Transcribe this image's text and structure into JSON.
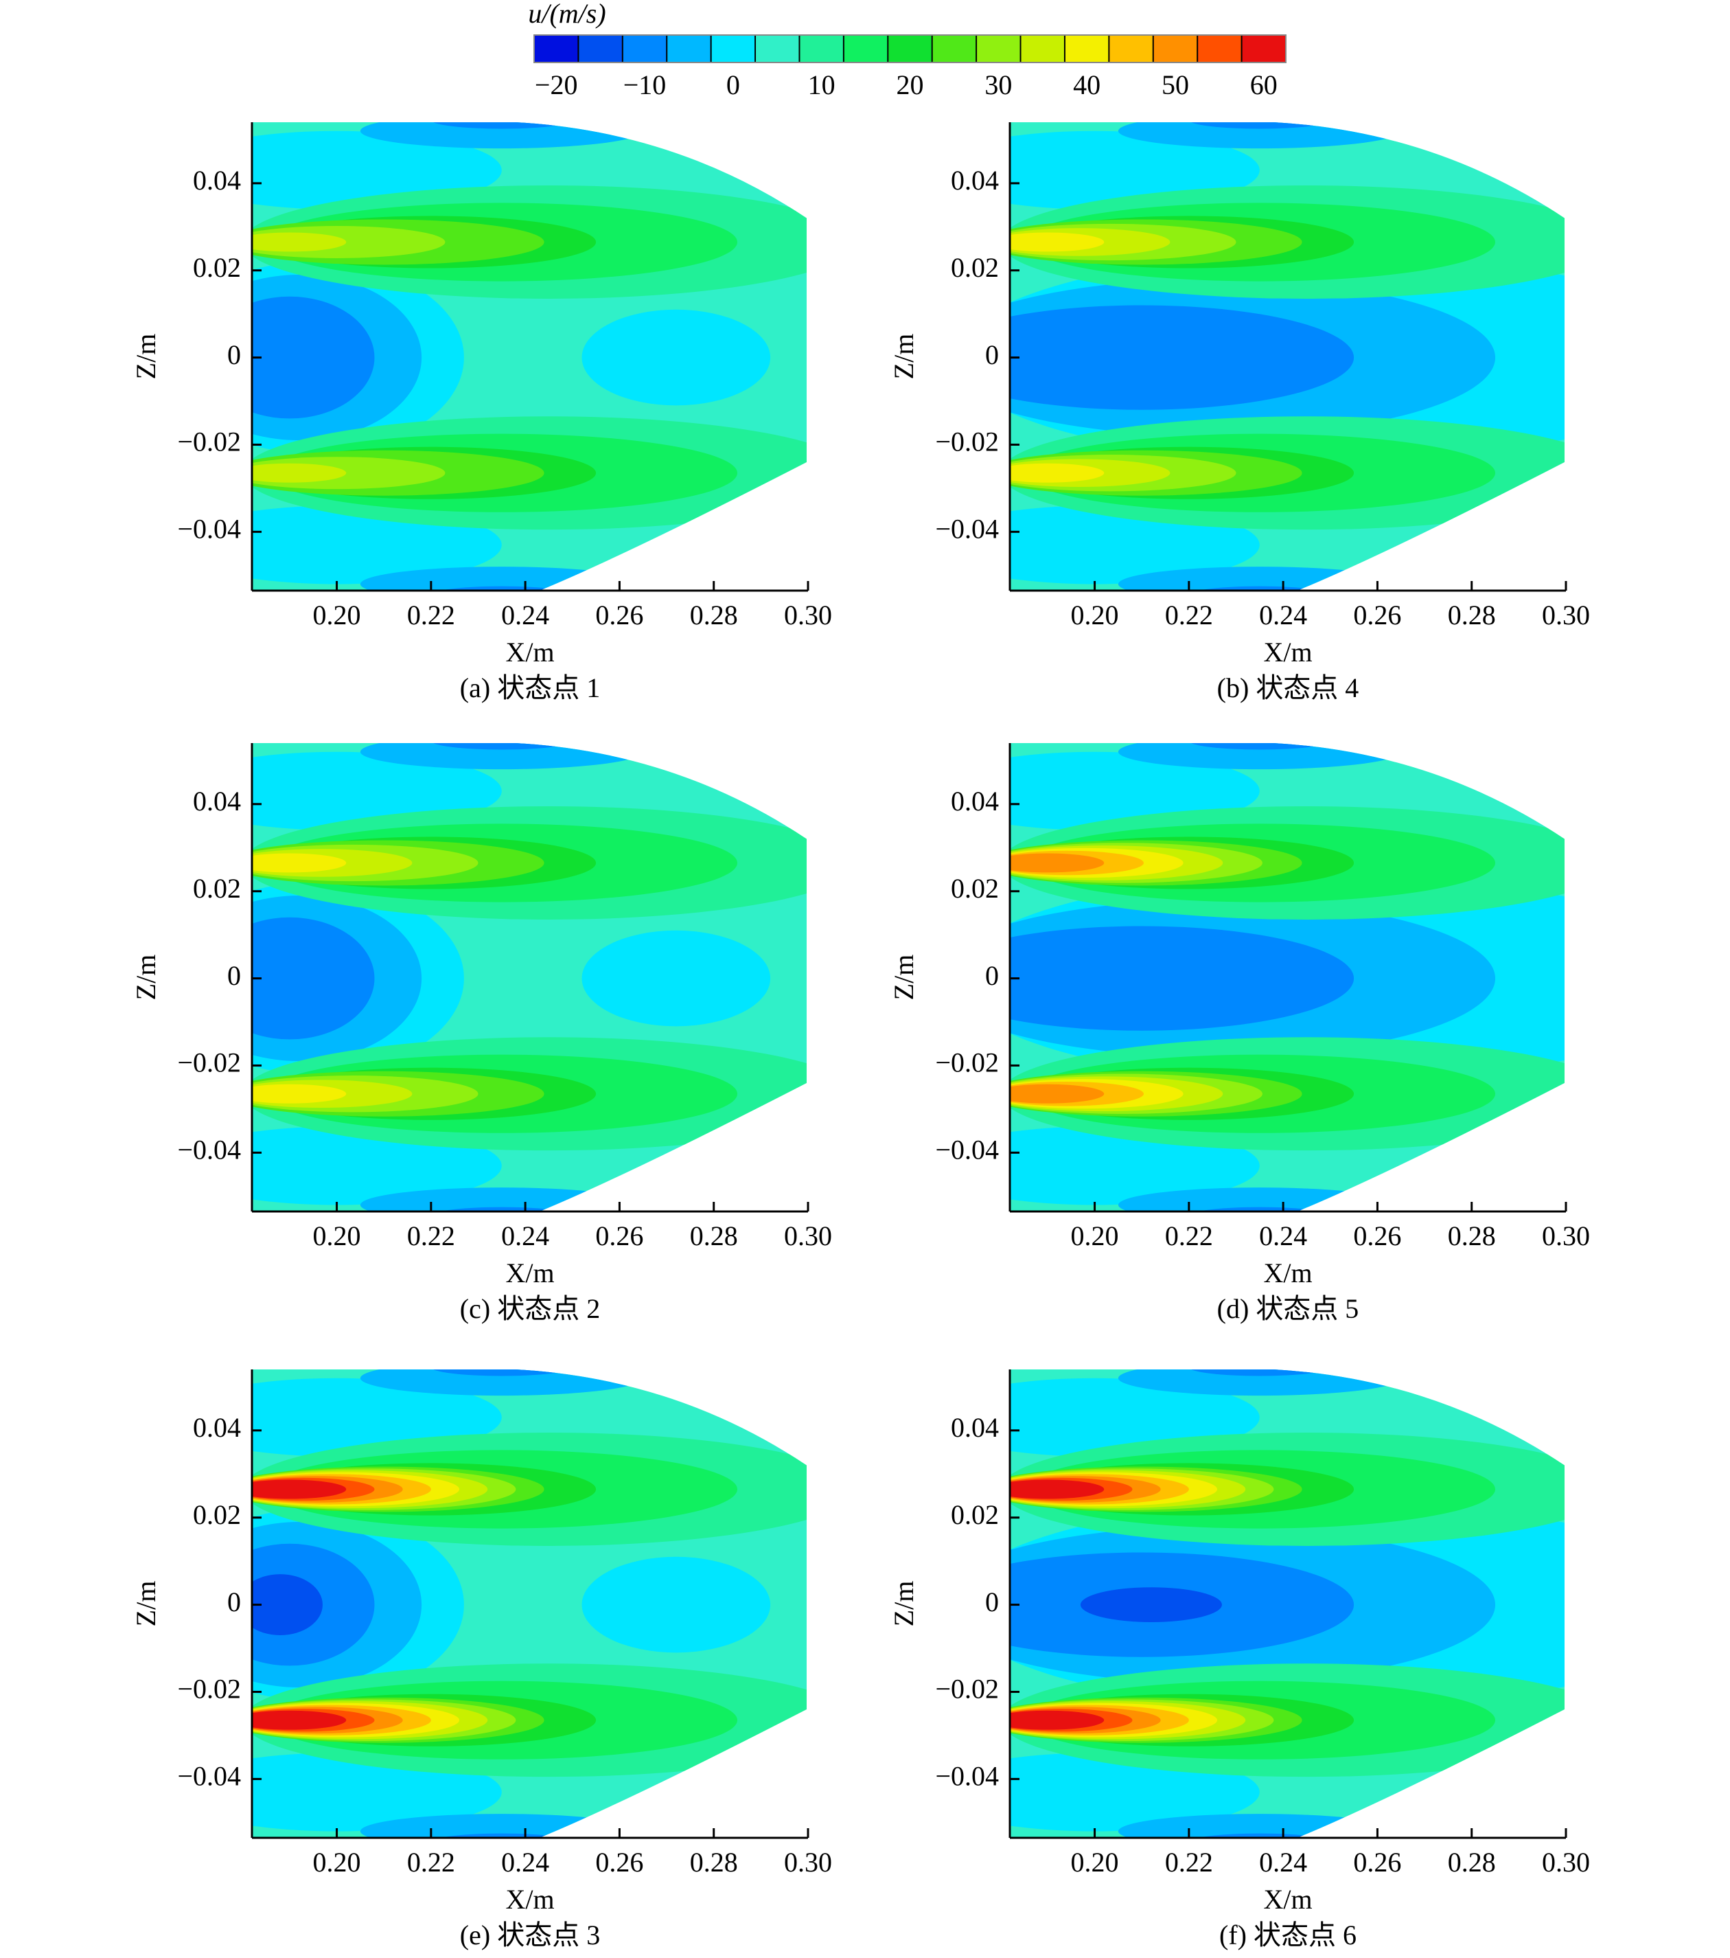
{
  "colorbar": {
    "title": "u/(m/s)",
    "lim": [
      -22.5,
      62.5
    ],
    "ticks": [
      {
        "value": -20,
        "label": "−20"
      },
      {
        "value": -10,
        "label": "−10"
      },
      0,
      10,
      20,
      30,
      40,
      50,
      60
    ],
    "colors": [
      "#0010e0",
      "#0050f0",
      "#0088ff",
      "#00b8ff",
      "#00e6ff",
      "#30f0c8",
      "#20f098",
      "#10f060",
      "#10e030",
      "#50e818",
      "#90f010",
      "#c8f000",
      "#f4f000",
      "#ffc000",
      "#ff9000",
      "#ff5000",
      "#e81010"
    ]
  },
  "chart_data": [
    {
      "type": "contour",
      "caption": "(a) 状态点 1",
      "xlabel": "X/m",
      "ylabel": "Z/m",
      "xlim": [
        0.182,
        0.3
      ],
      "ylim": [
        -0.0535,
        0.054
      ],
      "xticks": [
        {
          "value": 0.2,
          "label": "0.20"
        },
        {
          "value": 0.22,
          "label": "0.22"
        },
        {
          "value": 0.24,
          "label": "0.24"
        },
        {
          "value": 0.26,
          "label": "0.26"
        },
        {
          "value": 0.28,
          "label": "0.28"
        },
        {
          "value": 0.3,
          "label": "0.30"
        }
      ],
      "yticks": [
        {
          "value": -0.04,
          "label": "−0.04"
        },
        {
          "value": -0.02,
          "label": "−0.02"
        },
        0,
        {
          "value": 0.02,
          "label": "0.02"
        },
        {
          "value": 0.04,
          "label": "0.04"
        }
      ]
    },
    {
      "type": "contour",
      "caption": "(b) 状态点 4",
      "xlabel": "X/m",
      "ylabel": "Z/m",
      "xlim": [
        0.182,
        0.3
      ],
      "ylim": [
        -0.0535,
        0.054
      ],
      "xticks": [
        {
          "value": 0.2,
          "label": "0.20"
        },
        {
          "value": 0.22,
          "label": "0.22"
        },
        {
          "value": 0.24,
          "label": "0.24"
        },
        {
          "value": 0.26,
          "label": "0.26"
        },
        {
          "value": 0.28,
          "label": "0.28"
        },
        {
          "value": 0.3,
          "label": "0.30"
        }
      ],
      "yticks": [
        {
          "value": -0.04,
          "label": "−0.04"
        },
        {
          "value": -0.02,
          "label": "−0.02"
        },
        0,
        {
          "value": 0.02,
          "label": "0.02"
        },
        {
          "value": 0.04,
          "label": "0.04"
        }
      ]
    },
    {
      "type": "contour",
      "caption": "(c) 状态点 2",
      "xlabel": "X/m",
      "ylabel": "Z/m",
      "xlim": [
        0.182,
        0.3
      ],
      "ylim": [
        -0.0535,
        0.054
      ],
      "xticks": [
        {
          "value": 0.2,
          "label": "0.20"
        },
        {
          "value": 0.22,
          "label": "0.22"
        },
        {
          "value": 0.24,
          "label": "0.24"
        },
        {
          "value": 0.26,
          "label": "0.26"
        },
        {
          "value": 0.28,
          "label": "0.28"
        },
        {
          "value": 0.3,
          "label": "0.30"
        }
      ],
      "yticks": [
        {
          "value": -0.04,
          "label": "−0.04"
        },
        {
          "value": -0.02,
          "label": "−0.02"
        },
        0,
        {
          "value": 0.02,
          "label": "0.02"
        },
        {
          "value": 0.04,
          "label": "0.04"
        }
      ]
    },
    {
      "type": "contour",
      "caption": "(d) 状态点 5",
      "xlabel": "X/m",
      "ylabel": "Z/m",
      "xlim": [
        0.182,
        0.3
      ],
      "ylim": [
        -0.0535,
        0.054
      ],
      "xticks": [
        {
          "value": 0.2,
          "label": "0.20"
        },
        {
          "value": 0.22,
          "label": "0.22"
        },
        {
          "value": 0.24,
          "label": "0.24"
        },
        {
          "value": 0.26,
          "label": "0.26"
        },
        {
          "value": 0.28,
          "label": "0.28"
        },
        {
          "value": 0.3,
          "label": "0.30"
        }
      ],
      "yticks": [
        {
          "value": -0.04,
          "label": "−0.04"
        },
        {
          "value": -0.02,
          "label": "−0.02"
        },
        0,
        {
          "value": 0.02,
          "label": "0.02"
        },
        {
          "value": 0.04,
          "label": "0.04"
        }
      ]
    },
    {
      "type": "contour",
      "caption": "(e) 状态点 3",
      "xlabel": "X/m",
      "ylabel": "Z/m",
      "xlim": [
        0.182,
        0.3
      ],
      "ylim": [
        -0.0535,
        0.054
      ],
      "xticks": [
        {
          "value": 0.2,
          "label": "0.20"
        },
        {
          "value": 0.22,
          "label": "0.22"
        },
        {
          "value": 0.24,
          "label": "0.24"
        },
        {
          "value": 0.26,
          "label": "0.26"
        },
        {
          "value": 0.28,
          "label": "0.28"
        },
        {
          "value": 0.3,
          "label": "0.30"
        }
      ],
      "yticks": [
        {
          "value": -0.04,
          "label": "−0.04"
        },
        {
          "value": -0.02,
          "label": "−0.02"
        },
        0,
        {
          "value": 0.02,
          "label": "0.02"
        },
        {
          "value": 0.04,
          "label": "0.04"
        }
      ]
    },
    {
      "type": "contour",
      "caption": "(f) 状态点 6",
      "xlabel": "X/m",
      "ylabel": "Z/m",
      "xlim": [
        0.182,
        0.3
      ],
      "ylim": [
        -0.0535,
        0.054
      ],
      "xticks": [
        {
          "value": 0.2,
          "label": "0.20"
        },
        {
          "value": 0.22,
          "label": "0.22"
        },
        {
          "value": 0.24,
          "label": "0.24"
        },
        {
          "value": 0.26,
          "label": "0.26"
        },
        {
          "value": 0.28,
          "label": "0.28"
        },
        {
          "value": 0.3,
          "label": "0.30"
        }
      ],
      "yticks": [
        {
          "value": -0.04,
          "label": "−0.04"
        },
        {
          "value": -0.02,
          "label": "−0.02"
        },
        0,
        {
          "value": 0.02,
          "label": "0.02"
        },
        {
          "value": 0.04,
          "label": "0.04"
        }
      ]
    }
  ]
}
